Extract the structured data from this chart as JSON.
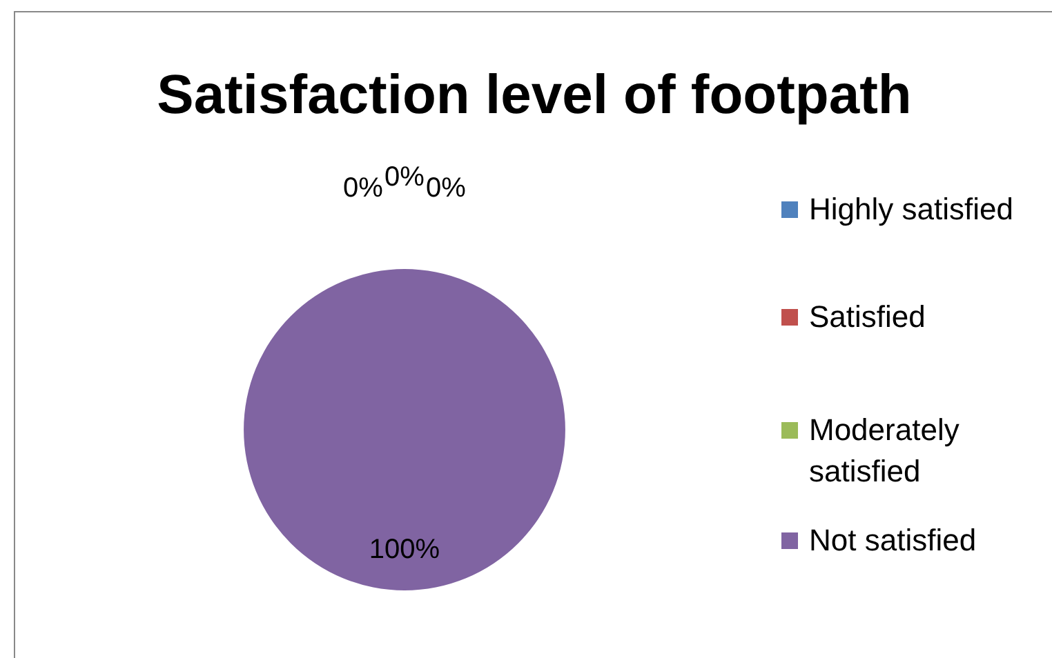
{
  "chart_data": {
    "type": "pie",
    "title": "Satisfaction level of footpath",
    "categories": [
      "Highly satisfied",
      "Satisfied",
      "Moderately satisfied",
      "Not satisfied"
    ],
    "values": [
      0,
      0,
      0,
      100
    ],
    "colors": [
      "#4f81bd",
      "#c0504d",
      "#9bbb59",
      "#8064a2"
    ],
    "value_labels": [
      "0%",
      "0%",
      "0%",
      "100%"
    ],
    "legend": "right"
  }
}
